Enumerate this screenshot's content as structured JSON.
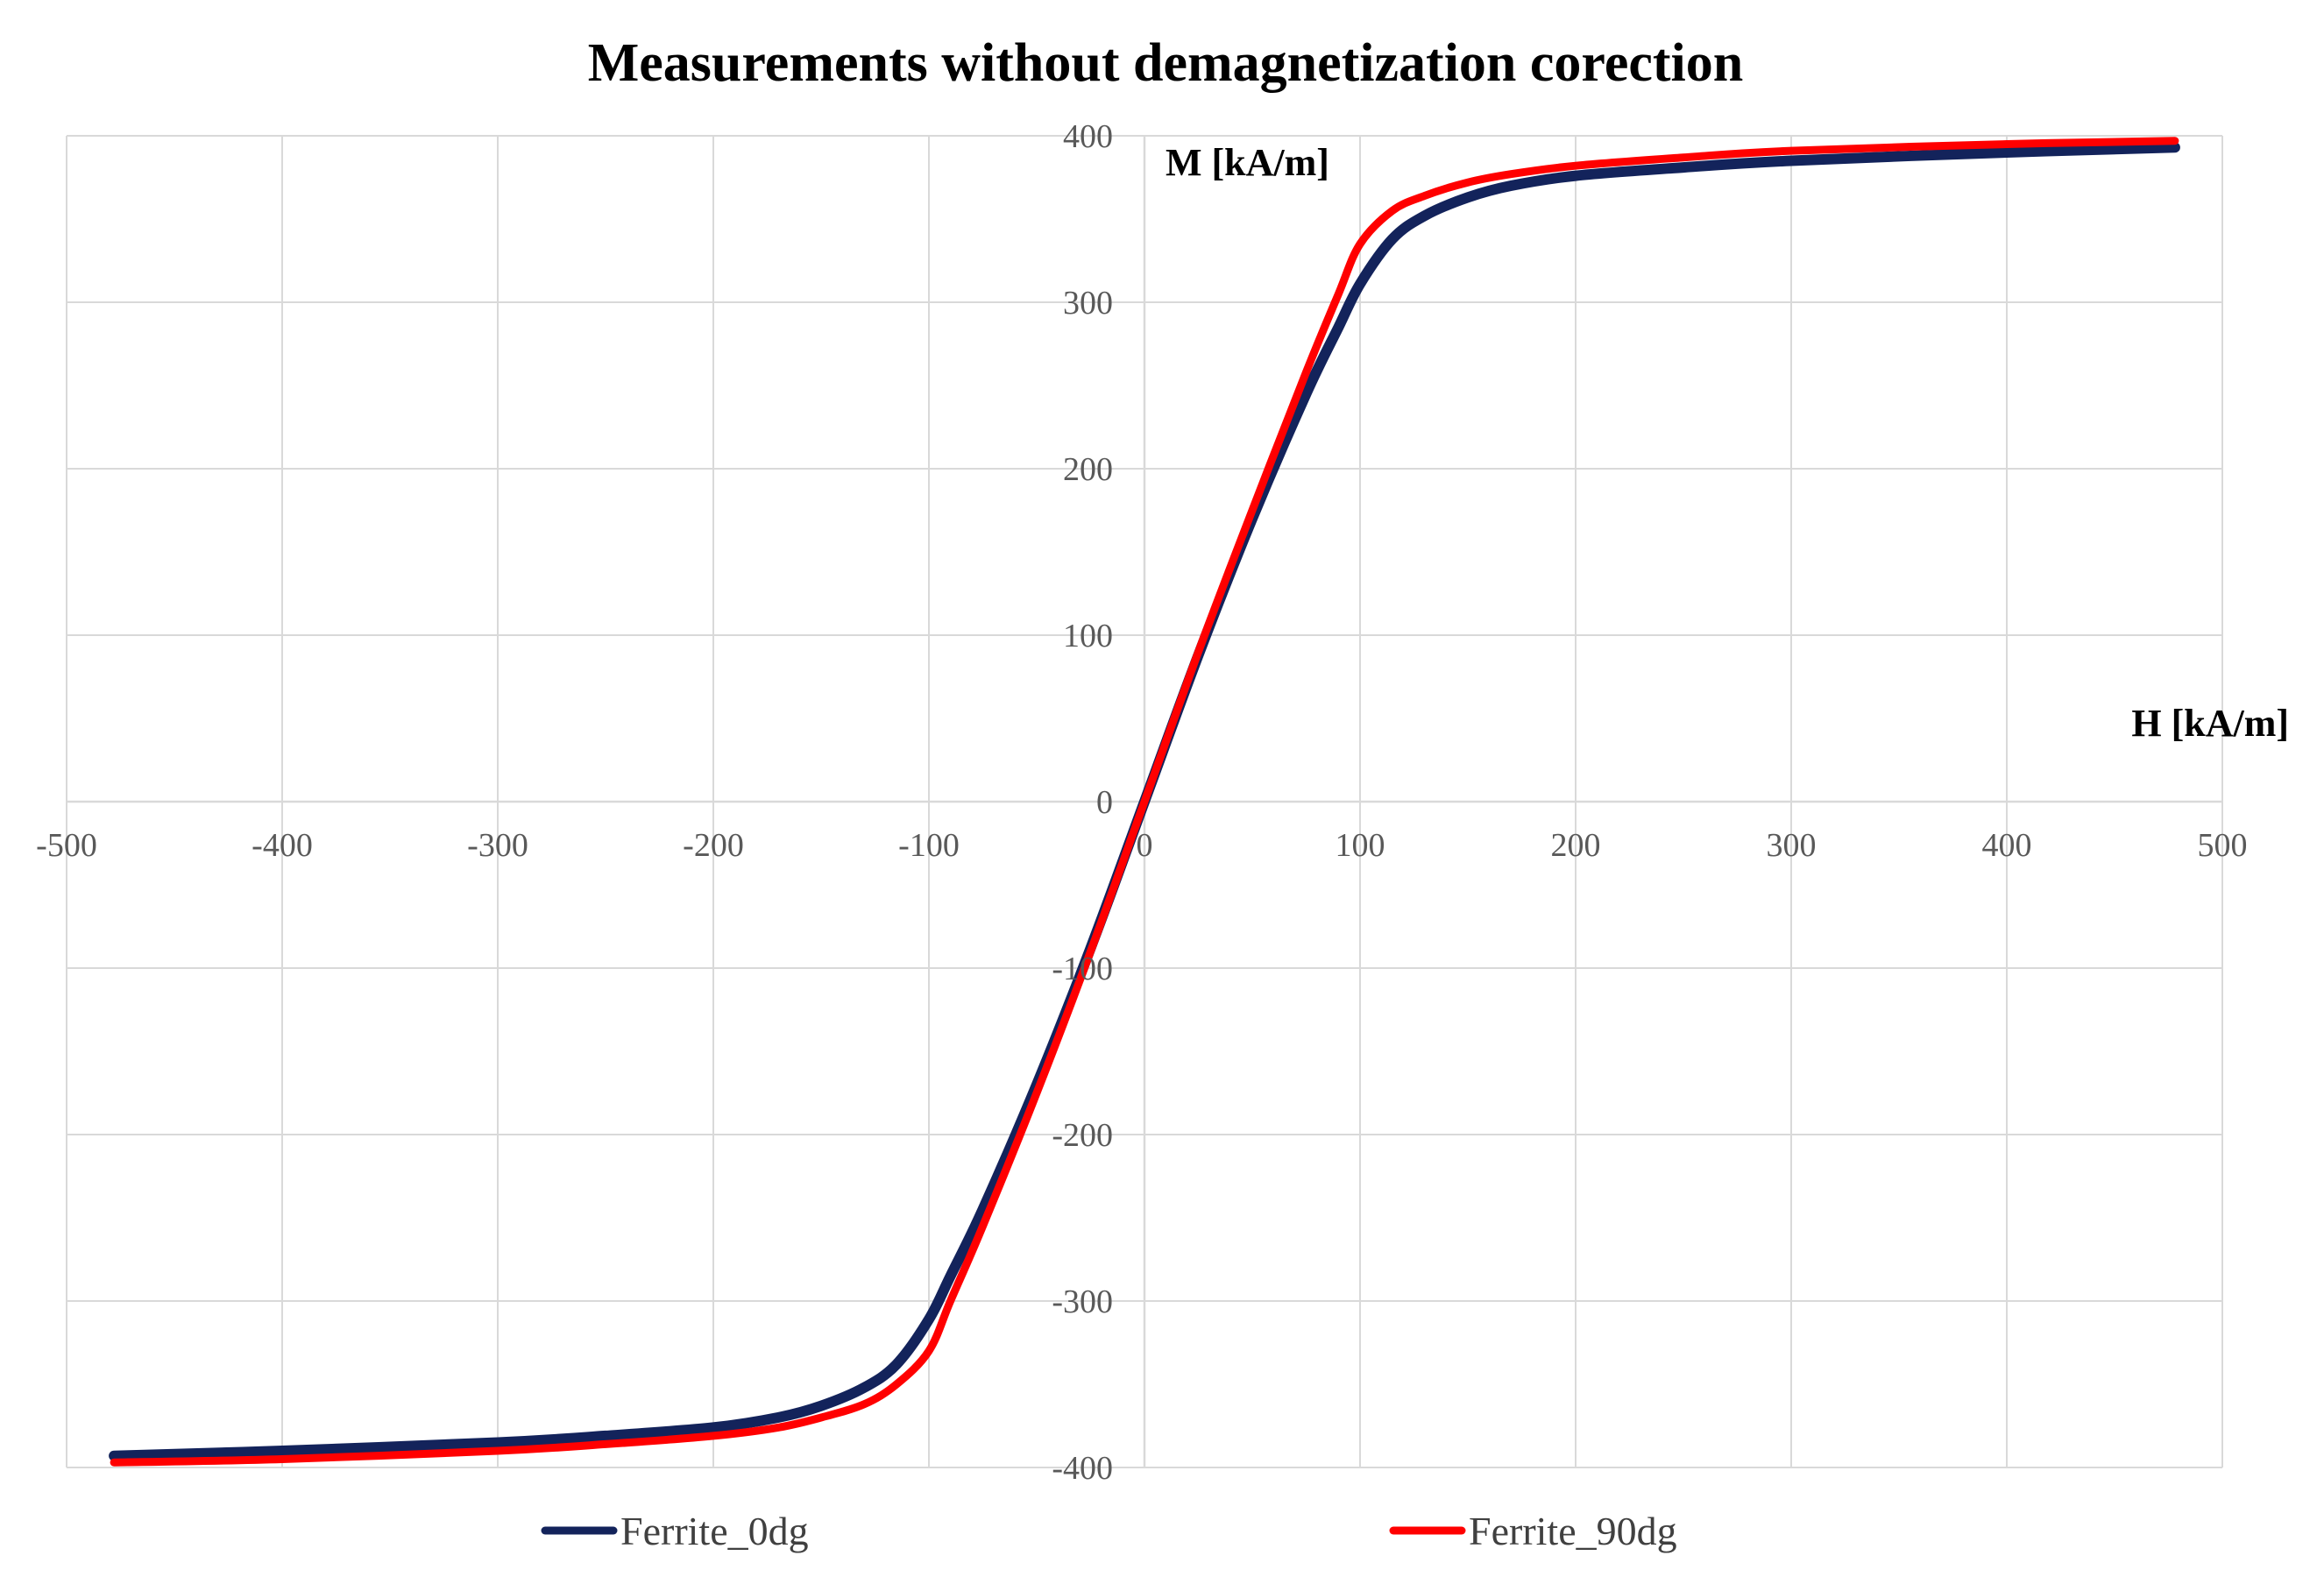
{
  "chart_data": {
    "type": "line",
    "title": "Measurements without demagnetization corection",
    "xlabel": "H [kA/m]",
    "ylabel": "M [kA/m]",
    "xlim": [
      -500,
      500
    ],
    "ylim": [
      -400,
      400
    ],
    "x_ticks": [
      -500,
      -400,
      -300,
      -200,
      -100,
      0,
      100,
      200,
      300,
      400,
      500
    ],
    "y_ticks": [
      -400,
      -300,
      -200,
      -100,
      0,
      100,
      200,
      300,
      400
    ],
    "grid": true,
    "legend_position": "bottom",
    "series": [
      {
        "name": "Ferrite_0dg",
        "color": "#13235b",
        "x": [
          -478,
          -400,
          -300,
          -250,
          -200,
          -170,
          -150,
          -130,
          -115,
          -100,
          -90,
          -75,
          -50,
          -25,
          0,
          25,
          50,
          75,
          90,
          100,
          115,
          130,
          150,
          170,
          200,
          250,
          300,
          400,
          478
        ],
        "y": [
          -393,
          -390,
          -385,
          -381,
          -376,
          -370,
          -363,
          -352,
          -338,
          -311,
          -285,
          -245,
          -170,
          -88,
          0,
          88,
          170,
          245,
          285,
          311,
          338,
          352,
          363,
          370,
          376,
          381,
          385,
          390,
          393
        ]
      },
      {
        "name": "Ferrite_90dg",
        "color": "#ff0000",
        "x": [
          -478,
          -400,
          -300,
          -250,
          -200,
          -170,
          -150,
          -130,
          -115,
          -100,
          -90,
          -75,
          -50,
          -25,
          0,
          25,
          50,
          75,
          90,
          100,
          115,
          130,
          150,
          170,
          200,
          250,
          300,
          400,
          478
        ],
        "y": [
          -397,
          -395,
          -390,
          -386,
          -381,
          -376,
          -370,
          -362,
          -350,
          -330,
          -300,
          -255,
          -175,
          -90,
          0,
          90,
          175,
          258,
          305,
          335,
          355,
          364,
          372,
          377,
          382,
          387,
          391,
          395,
          397
        ]
      }
    ]
  }
}
